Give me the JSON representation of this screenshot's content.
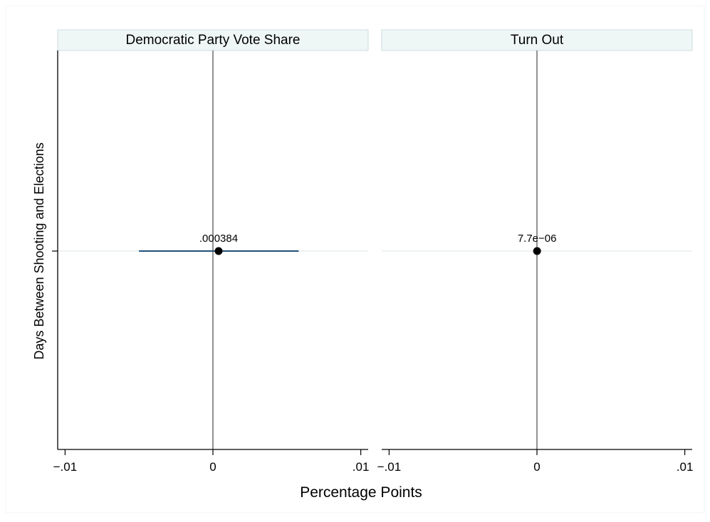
{
  "chart_data": {
    "type": "scatter",
    "ylabel": "Days Between Shooting and Elections",
    "xlabel": "Percentage Points",
    "xlim": [
      -0.0105,
      0.0105
    ],
    "xticks": [
      {
        "value": -0.01,
        "label": "−.01"
      },
      {
        "value": 0,
        "label": "0"
      },
      {
        "value": 0.01,
        "label": ".01"
      }
    ],
    "grid": true,
    "legend": "none",
    "colors": {
      "ci": "#1f4e79",
      "point": "#000000",
      "panel_header_fill": "#eef6f6",
      "zero_line": "#777777",
      "grid": "#e8eeee"
    },
    "panels": [
      {
        "title": "Democratic Party Vote Share",
        "estimate": 0.000384,
        "ci": [
          -0.005,
          0.0058
        ],
        "label": ".000384"
      },
      {
        "title": "Turn Out",
        "estimate": 7.7e-06,
        "ci": [
          7.7e-06,
          7.7e-06
        ],
        "label": "7.7e−06"
      }
    ]
  }
}
